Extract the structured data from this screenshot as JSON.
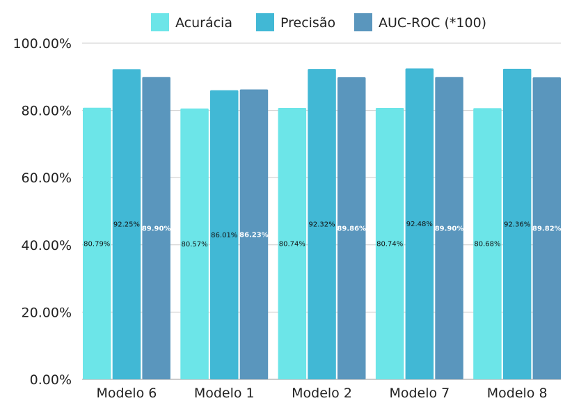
{
  "chart_data": {
    "type": "bar",
    "categories": [
      "Modelo 6",
      "Modelo 1",
      "Modelo 2",
      "Modelo 7",
      "Modelo 8"
    ],
    "series": [
      {
        "name": "Acurácia",
        "values": [
          80.79,
          80.57,
          80.74,
          80.74,
          80.68
        ],
        "color": "#6ce5e8",
        "labels": [
          "80.79%",
          "80.57%",
          "80.74%",
          "80.74%",
          "80.68%"
        ],
        "label_color": "#111111"
      },
      {
        "name": "Precisão",
        "values": [
          92.25,
          86.01,
          92.32,
          92.48,
          92.36
        ],
        "color": "#41b8d5",
        "labels": [
          "92.25%",
          "86.01%",
          "92.32%",
          "92.48%",
          "92.36%"
        ],
        "label_color": "#111111"
      },
      {
        "name": "AUC-ROC (*100)",
        "values": [
          89.9,
          86.23,
          89.86,
          89.9,
          89.82
        ],
        "color": "#5a96bd",
        "labels": [
          "89.90%",
          "86.23%",
          "89.86%",
          "89.90%",
          "89.82%"
        ],
        "label_color": "#ffffff"
      }
    ],
    "y_ticks": [
      "0.00%",
      "20.00%",
      "40.00%",
      "60.00%",
      "80.00%",
      "100.00%"
    ],
    "ylim": [
      0,
      100
    ],
    "legend_position": "top",
    "grid": true,
    "gridline_color": "#cccccc"
  }
}
